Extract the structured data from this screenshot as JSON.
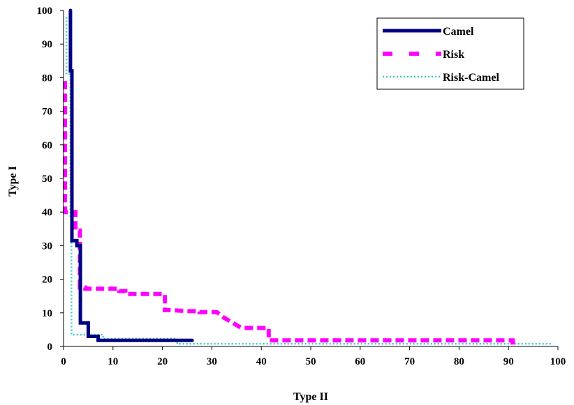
{
  "chart_data": {
    "type": "line",
    "title": "",
    "xlabel": "Type II",
    "ylabel": "Type I",
    "xlim": [
      0,
      100
    ],
    "ylim": [
      0,
      100
    ],
    "xticks": [
      "0",
      "10",
      "20",
      "30",
      "40",
      "50",
      "60",
      "70",
      "80",
      "90",
      "100"
    ],
    "yticks": [
      "0",
      "10",
      "20",
      "30",
      "40",
      "50",
      "60",
      "70",
      "80",
      "90",
      "100"
    ],
    "grid": false,
    "legend_position": "top-right",
    "series": [
      {
        "name": "Camel",
        "color": "#000080",
        "style": "solid",
        "x": [
          1.4,
          1.4,
          1.7,
          1.7,
          2.7,
          2.7,
          3.4,
          3.4,
          5.0,
          5.0,
          7.0,
          7.0,
          8.0,
          23.0,
          26.0
        ],
        "y": [
          100,
          82,
          82,
          31.5,
          31.5,
          30,
          30,
          7,
          7,
          3,
          3,
          1.8,
          1.8,
          1.8,
          1.8
        ]
      },
      {
        "name": "Risk",
        "color": "#ff00ff",
        "style": "dashed",
        "x": [
          0.3,
          0.3,
          2.4,
          2.4,
          3.3,
          3.3,
          4.4,
          4.4,
          6.4,
          11.3,
          11.3,
          12.5,
          12.5,
          18.0,
          20.5,
          20.5,
          21.5,
          25.5,
          27.5,
          27.5,
          31.0,
          32.5,
          36.0,
          41.5,
          41.5,
          50.0,
          60.0,
          70.0,
          80.0,
          87.0,
          90.8,
          90.8,
          91.5
        ],
        "y": [
          79,
          40,
          40,
          34.5,
          34.5,
          17.5,
          17.5,
          17.2,
          17.2,
          17.2,
          16.5,
          16.5,
          15.6,
          15.6,
          15.6,
          10.8,
          10.8,
          10.5,
          10.5,
          10.2,
          10.2,
          8.5,
          5.5,
          5.5,
          1.8,
          1.8,
          1.8,
          1.8,
          1.8,
          1.8,
          1.8,
          1.2,
          1.2
        ]
      },
      {
        "name": "Risk-Camel",
        "color": "#33cccc",
        "style": "dotted",
        "x": [
          0.6,
          0.6,
          1.4,
          1.4,
          1.6,
          1.6,
          2.0,
          2.0,
          8.0,
          8.0,
          23.0,
          23.0,
          99.0
        ],
        "y": [
          98,
          81,
          81,
          38,
          38,
          3.5,
          3.5,
          3.5,
          3.5,
          2.3,
          2.3,
          0.8,
          0.8
        ]
      }
    ]
  }
}
